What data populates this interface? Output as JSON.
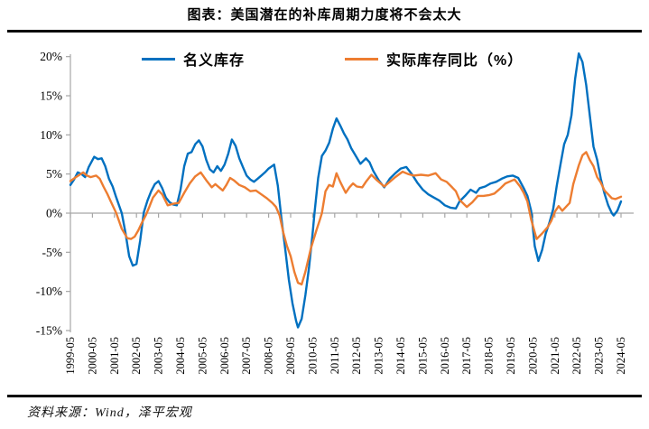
{
  "title": "图表：美国潜在的补库周期力度将不会太大",
  "source": "资料来源：Wind，泽平宏观",
  "legend": [
    {
      "label": "名义库存",
      "color": "#0070C0"
    },
    {
      "label": "实际库存同比（%）",
      "color": "#ED7D31"
    }
  ],
  "colors": {
    "blue_series": "#0070C0",
    "orange_series": "#ED7D31",
    "axis": "#A6A6A6",
    "text": "#000000",
    "rule": "#000000",
    "background": "#FFFFFF"
  },
  "chart_data": {
    "type": "line",
    "title": "图表：美国潜在的补库周期力度将不会太大",
    "xlabel": "",
    "ylabel": "",
    "grid": "off",
    "legend_position": "top",
    "y_axis": {
      "min": -15,
      "max": 20,
      "tick_step": 5,
      "unit": "%",
      "ticks": [
        {
          "v": 20,
          "label": "20%"
        },
        {
          "v": 15,
          "label": "15%"
        },
        {
          "v": 10,
          "label": "10%"
        },
        {
          "v": 5,
          "label": "5%"
        },
        {
          "v": 0,
          "label": "0%"
        },
        {
          "v": -5,
          "label": "-5%"
        },
        {
          "v": -10,
          "label": "-10%"
        },
        {
          "v": -15,
          "label": "-15%"
        }
      ]
    },
    "x_axis": {
      "start": "1999-05",
      "end": "2024-05",
      "frequency": "monthly",
      "tick_labels": [
        "1999-05",
        "2000-05",
        "2001-05",
        "2002-05",
        "2003-05",
        "2004-05",
        "2005-05",
        "2006-05",
        "2007-05",
        "2008-05",
        "2009-05",
        "2010-05",
        "2011-05",
        "2012-05",
        "2013-05",
        "2014-05",
        "2015-05",
        "2016-05",
        "2017-05",
        "2018-05",
        "2019-05",
        "2020-05",
        "2021-05",
        "2022-05",
        "2023-05",
        "2024-05"
      ]
    },
    "series": [
      {
        "name": "名义库存",
        "color": "#0070C0",
        "points": [
          [
            "1999-05",
            3.6
          ],
          [
            "1999-07",
            4.3
          ],
          [
            "1999-09",
            5.2
          ],
          [
            "1999-11",
            5.0
          ],
          [
            "2000-01",
            4.6
          ],
          [
            "2000-03",
            5.9
          ],
          [
            "2000-06",
            7.2
          ],
          [
            "2000-08",
            6.9
          ],
          [
            "2000-10",
            7.0
          ],
          [
            "2000-12",
            6.0
          ],
          [
            "2001-02",
            4.4
          ],
          [
            "2001-04",
            3.4
          ],
          [
            "2001-06",
            2.0
          ],
          [
            "2001-09",
            0.0
          ],
          [
            "2001-11",
            -2.5
          ],
          [
            "2002-01",
            -5.5
          ],
          [
            "2002-03",
            -6.7
          ],
          [
            "2002-05",
            -6.5
          ],
          [
            "2002-07",
            -3.5
          ],
          [
            "2002-09",
            0.1
          ],
          [
            "2002-11",
            1.6
          ],
          [
            "2003-01",
            2.8
          ],
          [
            "2003-03",
            3.7
          ],
          [
            "2003-05",
            4.1
          ],
          [
            "2003-07",
            3.2
          ],
          [
            "2003-09",
            2.0
          ],
          [
            "2003-11",
            1.4
          ],
          [
            "2004-01",
            1.1
          ],
          [
            "2004-03",
            1.0
          ],
          [
            "2004-05",
            3.0
          ],
          [
            "2004-07",
            6.0
          ],
          [
            "2004-09",
            7.6
          ],
          [
            "2004-11",
            7.8
          ],
          [
            "2005-01",
            8.8
          ],
          [
            "2005-03",
            9.3
          ],
          [
            "2005-05",
            8.5
          ],
          [
            "2005-07",
            6.8
          ],
          [
            "2005-09",
            5.6
          ],
          [
            "2005-11",
            5.2
          ],
          [
            "2006-01",
            6.0
          ],
          [
            "2006-03",
            5.4
          ],
          [
            "2006-05",
            6.2
          ],
          [
            "2006-07",
            7.6
          ],
          [
            "2006-09",
            9.4
          ],
          [
            "2006-11",
            8.6
          ],
          [
            "2007-01",
            7.0
          ],
          [
            "2007-03",
            5.9
          ],
          [
            "2007-05",
            4.8
          ],
          [
            "2007-07",
            4.3
          ],
          [
            "2007-09",
            4.0
          ],
          [
            "2007-11",
            4.4
          ],
          [
            "2008-01",
            4.8
          ],
          [
            "2008-03",
            5.2
          ],
          [
            "2008-05",
            5.7
          ],
          [
            "2008-08",
            6.2
          ],
          [
            "2008-10",
            3.5
          ],
          [
            "2008-12",
            -0.7
          ],
          [
            "2009-02",
            -4.5
          ],
          [
            "2009-04",
            -8.5
          ],
          [
            "2009-06",
            -11.5
          ],
          [
            "2009-08",
            -13.8
          ],
          [
            "2009-09",
            -14.6
          ],
          [
            "2009-11",
            -13.5
          ],
          [
            "2010-01",
            -10.5
          ],
          [
            "2010-03",
            -7.0
          ],
          [
            "2010-05",
            -2.5
          ],
          [
            "2010-06",
            0.0
          ],
          [
            "2010-08",
            4.5
          ],
          [
            "2010-10",
            7.3
          ],
          [
            "2010-12",
            8.0
          ],
          [
            "2011-02",
            9.0
          ],
          [
            "2011-04",
            10.8
          ],
          [
            "2011-06",
            12.1
          ],
          [
            "2011-08",
            11.2
          ],
          [
            "2011-10",
            10.2
          ],
          [
            "2011-12",
            9.4
          ],
          [
            "2012-02",
            8.3
          ],
          [
            "2012-04",
            7.5
          ],
          [
            "2012-07",
            6.3
          ],
          [
            "2012-10",
            7.0
          ],
          [
            "2012-12",
            6.5
          ],
          [
            "2013-02",
            5.4
          ],
          [
            "2013-05",
            4.2
          ],
          [
            "2013-08",
            3.3
          ],
          [
            "2013-11",
            4.4
          ],
          [
            "2014-02",
            5.1
          ],
          [
            "2014-05",
            5.7
          ],
          [
            "2014-08",
            5.9
          ],
          [
            "2014-11",
            5.0
          ],
          [
            "2015-02",
            3.9
          ],
          [
            "2015-05",
            3.0
          ],
          [
            "2015-08",
            2.4
          ],
          [
            "2015-11",
            2.0
          ],
          [
            "2016-02",
            1.6
          ],
          [
            "2016-05",
            1.0
          ],
          [
            "2016-08",
            0.7
          ],
          [
            "2016-11",
            0.6
          ],
          [
            "2017-01",
            1.5
          ],
          [
            "2017-04",
            2.2
          ],
          [
            "2017-07",
            3.0
          ],
          [
            "2017-10",
            2.6
          ],
          [
            "2017-12",
            3.2
          ],
          [
            "2018-03",
            3.4
          ],
          [
            "2018-06",
            3.8
          ],
          [
            "2018-09",
            4.0
          ],
          [
            "2018-12",
            4.4
          ],
          [
            "2019-03",
            4.7
          ],
          [
            "2019-06",
            4.8
          ],
          [
            "2019-09",
            4.5
          ],
          [
            "2019-12",
            3.2
          ],
          [
            "2020-02",
            2.2
          ],
          [
            "2020-04",
            0.3
          ],
          [
            "2020-06",
            -4.2
          ],
          [
            "2020-08",
            -6.1
          ],
          [
            "2020-10",
            -4.7
          ],
          [
            "2020-12",
            -2.6
          ],
          [
            "2021-02",
            -1.2
          ],
          [
            "2021-04",
            0.5
          ],
          [
            "2021-06",
            3.5
          ],
          [
            "2021-08",
            6.2
          ],
          [
            "2021-10",
            8.8
          ],
          [
            "2021-12",
            10.0
          ],
          [
            "2022-02",
            12.5
          ],
          [
            "2022-04",
            17.2
          ],
          [
            "2022-06",
            20.4
          ],
          [
            "2022-08",
            19.3
          ],
          [
            "2022-10",
            16.4
          ],
          [
            "2022-12",
            12.5
          ],
          [
            "2023-02",
            8.5
          ],
          [
            "2023-04",
            6.8
          ],
          [
            "2023-06",
            4.4
          ],
          [
            "2023-08",
            2.5
          ],
          [
            "2023-10",
            1.0
          ],
          [
            "2023-12",
            0.0
          ],
          [
            "2024-01",
            -0.3
          ],
          [
            "2024-03",
            0.3
          ],
          [
            "2024-05",
            1.5
          ]
        ]
      },
      {
        "name": "实际库存同比（%）",
        "color": "#ED7D31",
        "points": [
          [
            "1999-05",
            4.1
          ],
          [
            "1999-08",
            4.6
          ],
          [
            "1999-10",
            4.9
          ],
          [
            "1999-12",
            5.2
          ],
          [
            "2000-02",
            4.8
          ],
          [
            "2000-04",
            4.6
          ],
          [
            "2000-07",
            4.8
          ],
          [
            "2000-09",
            4.4
          ],
          [
            "2000-11",
            3.4
          ],
          [
            "2001-01",
            2.5
          ],
          [
            "2001-03",
            1.5
          ],
          [
            "2001-06",
            0.0
          ],
          [
            "2001-09",
            -2.0
          ],
          [
            "2001-12",
            -3.2
          ],
          [
            "2002-02",
            -3.3
          ],
          [
            "2002-04",
            -3.0
          ],
          [
            "2002-06",
            -2.2
          ],
          [
            "2002-08",
            -1.2
          ],
          [
            "2002-10",
            -0.3
          ],
          [
            "2002-12",
            0.8
          ],
          [
            "2003-02",
            2.0
          ],
          [
            "2003-05",
            2.9
          ],
          [
            "2003-07",
            2.4
          ],
          [
            "2003-10",
            1.0
          ],
          [
            "2004-01",
            1.2
          ],
          [
            "2004-04",
            1.3
          ],
          [
            "2004-07",
            2.6
          ],
          [
            "2004-10",
            3.8
          ],
          [
            "2005-01",
            4.7
          ],
          [
            "2005-04",
            5.2
          ],
          [
            "2005-07",
            4.2
          ],
          [
            "2005-10",
            3.3
          ],
          [
            "2005-12",
            3.7
          ],
          [
            "2006-02",
            3.3
          ],
          [
            "2006-04",
            2.9
          ],
          [
            "2006-06",
            3.6
          ],
          [
            "2006-08",
            4.5
          ],
          [
            "2006-10",
            4.2
          ],
          [
            "2007-01",
            3.6
          ],
          [
            "2007-04",
            3.3
          ],
          [
            "2007-07",
            2.8
          ],
          [
            "2007-10",
            2.9
          ],
          [
            "2008-01",
            2.4
          ],
          [
            "2008-04",
            1.9
          ],
          [
            "2008-07",
            1.3
          ],
          [
            "2008-09",
            0.8
          ],
          [
            "2008-11",
            -0.3
          ],
          [
            "2009-01",
            -2.5
          ],
          [
            "2009-03",
            -4.2
          ],
          [
            "2009-05",
            -5.5
          ],
          [
            "2009-07",
            -7.5
          ],
          [
            "2009-09",
            -8.9
          ],
          [
            "2009-11",
            -9.1
          ],
          [
            "2010-01",
            -7.5
          ],
          [
            "2010-04",
            -4.5
          ],
          [
            "2010-07",
            -2.2
          ],
          [
            "2010-09",
            -0.8
          ],
          [
            "2010-10",
            0.0
          ],
          [
            "2010-12",
            2.8
          ],
          [
            "2011-02",
            3.6
          ],
          [
            "2011-04",
            3.4
          ],
          [
            "2011-06",
            5.1
          ],
          [
            "2011-08",
            4.0
          ],
          [
            "2011-11",
            2.6
          ],
          [
            "2012-01",
            3.3
          ],
          [
            "2012-03",
            3.8
          ],
          [
            "2012-05",
            3.4
          ],
          [
            "2012-08",
            3.3
          ],
          [
            "2012-10",
            4.0
          ],
          [
            "2013-01",
            4.9
          ],
          [
            "2013-04",
            4.2
          ],
          [
            "2013-08",
            3.4
          ],
          [
            "2013-11",
            4.0
          ],
          [
            "2014-02",
            4.6
          ],
          [
            "2014-06",
            5.3
          ],
          [
            "2014-09",
            5.0
          ],
          [
            "2014-12",
            4.8
          ],
          [
            "2015-04",
            4.9
          ],
          [
            "2015-08",
            4.8
          ],
          [
            "2015-12",
            5.1
          ],
          [
            "2016-03",
            4.3
          ],
          [
            "2016-06",
            4.0
          ],
          [
            "2016-09",
            3.3
          ],
          [
            "2016-11",
            2.8
          ],
          [
            "2017-01",
            1.7
          ],
          [
            "2017-05",
            0.8
          ],
          [
            "2017-08",
            1.4
          ],
          [
            "2017-11",
            2.2
          ],
          [
            "2018-02",
            2.2
          ],
          [
            "2018-05",
            2.3
          ],
          [
            "2018-08",
            2.5
          ],
          [
            "2018-11",
            3.1
          ],
          [
            "2019-02",
            3.8
          ],
          [
            "2019-07",
            4.3
          ],
          [
            "2019-10",
            3.4
          ],
          [
            "2019-12",
            2.6
          ],
          [
            "2020-02",
            1.5
          ],
          [
            "2020-04",
            -0.8
          ],
          [
            "2020-07",
            -3.3
          ],
          [
            "2020-10",
            -2.6
          ],
          [
            "2021-01",
            -1.8
          ],
          [
            "2021-03",
            -1.0
          ],
          [
            "2021-05",
            0.2
          ],
          [
            "2021-07",
            0.9
          ],
          [
            "2021-09",
            0.3
          ],
          [
            "2021-11",
            0.8
          ],
          [
            "2022-01",
            1.3
          ],
          [
            "2022-03",
            3.7
          ],
          [
            "2022-06",
            6.1
          ],
          [
            "2022-08",
            7.4
          ],
          [
            "2022-10",
            7.8
          ],
          [
            "2022-12",
            6.8
          ],
          [
            "2023-02",
            6.0
          ],
          [
            "2023-04",
            4.6
          ],
          [
            "2023-06",
            3.9
          ],
          [
            "2023-08",
            2.9
          ],
          [
            "2023-10",
            2.4
          ],
          [
            "2023-12",
            1.9
          ],
          [
            "2024-02",
            1.8
          ],
          [
            "2024-05",
            2.1
          ]
        ]
      }
    ]
  }
}
